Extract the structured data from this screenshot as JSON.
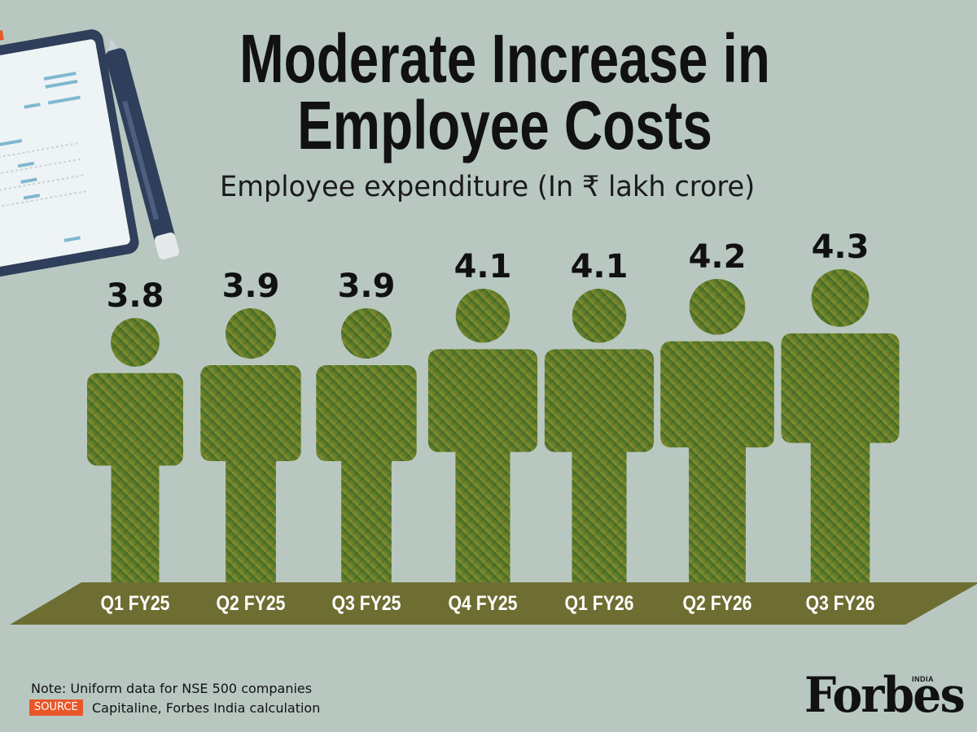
{
  "title_line1": "Moderate Increase in",
  "title_line2": "Employee Costs",
  "subtitle": "Employee expenditure (In ₹ lakh crore)",
  "note": "Note: Uniform data for NSE 500 companies",
  "source_label": "SOURCE",
  "source_text": "Capitaline, Forbes India calculation",
  "brand": "Forbes",
  "brand_sub": "INDIA",
  "colors": {
    "background": "#b8c8c0",
    "figure_fill": "#4f7a2a",
    "figure_fill_light": "#7a8a2e",
    "floor": "#6e6e33",
    "accent": "#e8572a"
  },
  "decoration": {
    "icons": [
      "clipboard-document-icon",
      "pen-icon"
    ]
  },
  "chart_data": {
    "type": "bar",
    "mark": "person-pictogram",
    "title": "Moderate Increase in Employee Costs",
    "subtitle": "Employee expenditure (In ₹ lakh crore)",
    "categories": [
      "Q1 FY25",
      "Q2 FY25",
      "Q3 FY25",
      "Q4 FY25",
      "Q1 FY26",
      "Q2 FY26",
      "Q3 FY26"
    ],
    "values": [
      3.8,
      3.9,
      3.9,
      4.1,
      4.1,
      4.2,
      4.3
    ],
    "value_labels": [
      "3.8",
      "3.9",
      "3.9",
      "4.1",
      "4.1",
      "4.2",
      "4.3"
    ],
    "xlabel": "",
    "ylabel": "",
    "grid": false,
    "legend": "none"
  }
}
